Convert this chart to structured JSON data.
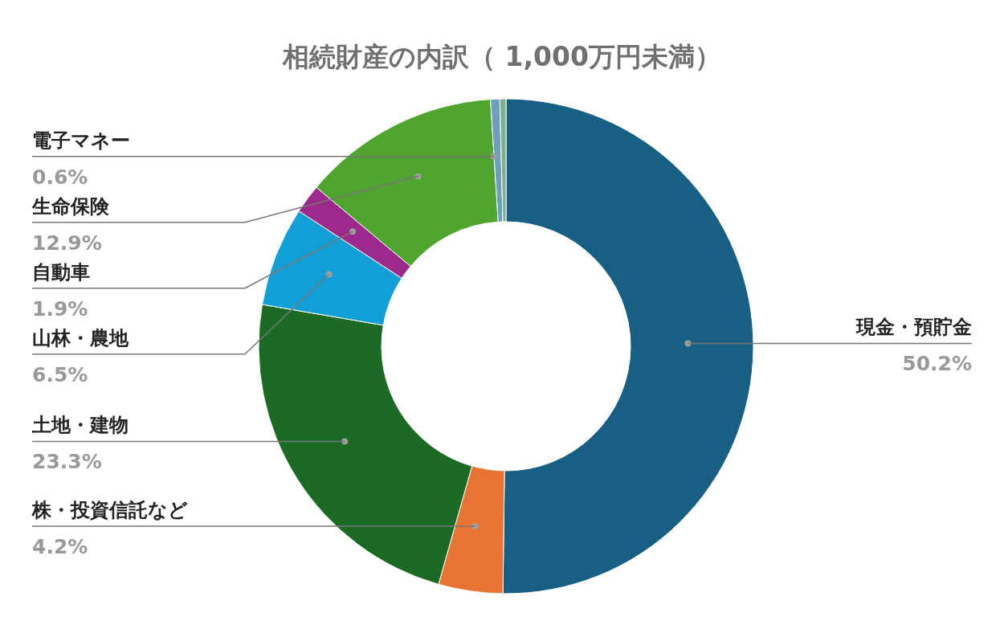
{
  "chart_data": {
    "type": "donut",
    "title": "相続財産の内訳（ 1,000万円未満）",
    "categories": [
      "現金・預貯金",
      "株・投資信託など",
      "土地・建物",
      "山林・農地",
      "自動車",
      "生命保険",
      "電子マネー",
      null
    ],
    "values": [
      50.2,
      4.2,
      23.3,
      6.5,
      1.9,
      12.9,
      0.6,
      0.4
    ],
    "colors": [
      "#176083",
      "#e87433",
      "#1b6b24",
      "#129fd6",
      "#9c2a8c",
      "#4fa530",
      "#6c9ec0",
      "#7fae8a"
    ],
    "value_labels": [
      "50.2%",
      "4.2%",
      "23.3%",
      "6.5%",
      "1.9%",
      "12.9%",
      "0.6%",
      null
    ],
    "legend": false
  }
}
